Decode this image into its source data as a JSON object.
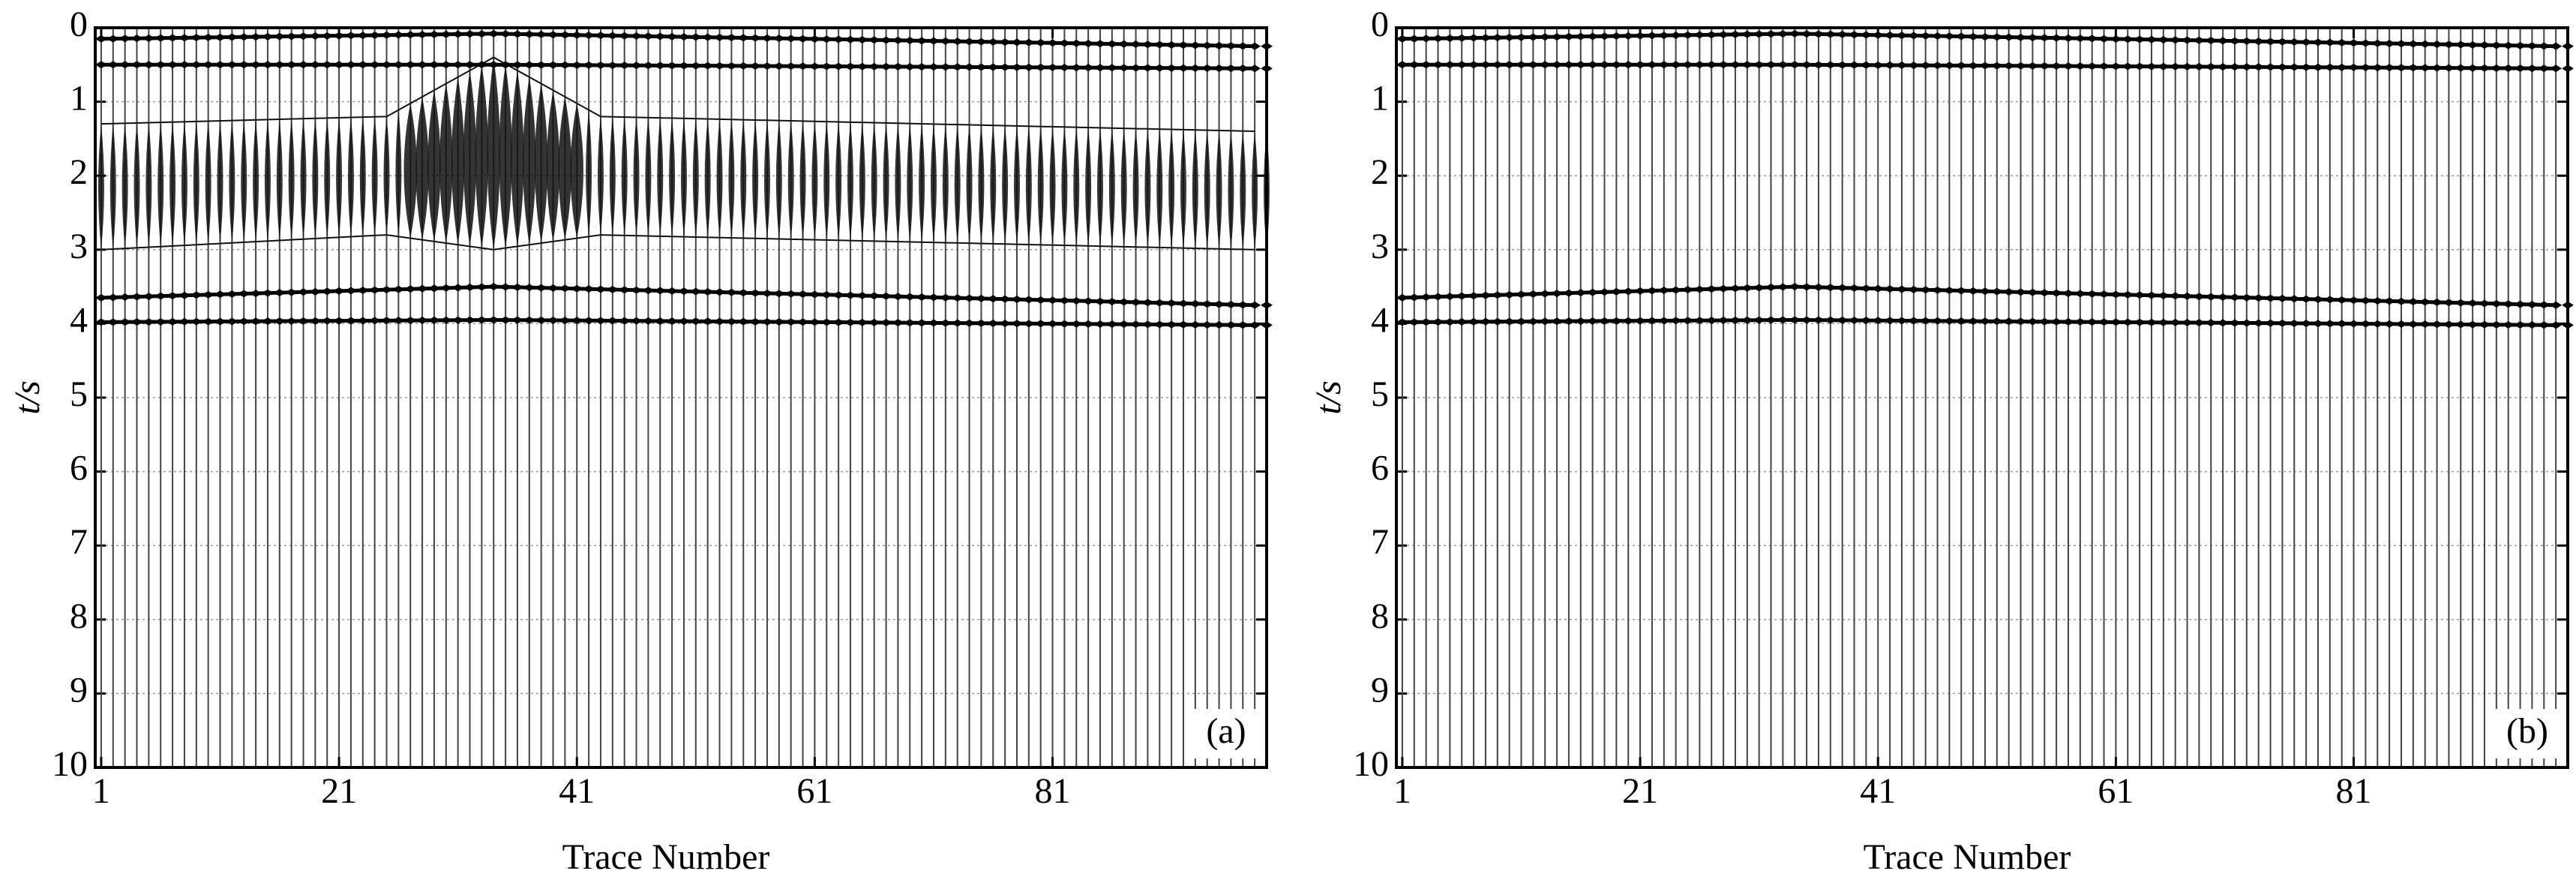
{
  "chart_data": [
    {
      "type": "seismic",
      "panel_label": "(a)",
      "x_label": "Trace Number",
      "y_label": "t/s",
      "xlim": [
        0.5,
        99
      ],
      "xticks": [
        1,
        21,
        41,
        61,
        81
      ],
      "ylim": [
        0,
        10
      ],
      "y_inverted": true,
      "yticks": [
        0,
        1,
        2,
        3,
        4,
        5,
        6,
        7,
        8,
        9,
        10
      ],
      "grid": true,
      "series": [
        {
          "color": "#000000",
          "x": [
            1,
            34,
            98
          ],
          "values": [
            0.15,
            0.08,
            0.25
          ]
        },
        {
          "color": "#000000",
          "x": [
            1,
            34,
            98
          ],
          "values": [
            0.5,
            0.5,
            0.55
          ]
        },
        {
          "color": "#000000",
          "x": [
            1,
            34,
            98
          ],
          "values": [
            3.65,
            3.5,
            3.75
          ]
        },
        {
          "color": "#000000",
          "x": [
            1,
            34,
            98
          ],
          "values": [
            3.98,
            3.95,
            4.02
          ]
        }
      ],
      "noise": {
        "x": [
          1,
          25,
          34,
          43,
          98
        ],
        "top": [
          1.3,
          1.2,
          0.4,
          1.2,
          1.4
        ],
        "bottom": [
          3.0,
          2.8,
          3.0,
          2.8,
          3.0
        ]
      }
    },
    {
      "type": "seismic",
      "panel_label": "(b)",
      "x_label": "Trace Number",
      "y_label": "t/s",
      "xlim": [
        0.5,
        99
      ],
      "xticks": [
        1,
        21,
        41,
        61,
        81
      ],
      "ylim": [
        0,
        10
      ],
      "y_inverted": true,
      "yticks": [
        0,
        1,
        2,
        3,
        4,
        5,
        6,
        7,
        8,
        9,
        10
      ],
      "grid": true,
      "series": [
        {
          "color": "#000000",
          "x": [
            1,
            34,
            98
          ],
          "values": [
            0.15,
            0.08,
            0.25
          ]
        },
        {
          "color": "#000000",
          "x": [
            1,
            34,
            98
          ],
          "values": [
            0.5,
            0.5,
            0.55
          ]
        },
        {
          "color": "#000000",
          "x": [
            1,
            34,
            98
          ],
          "values": [
            3.65,
            3.5,
            3.75
          ]
        },
        {
          "color": "#000000",
          "x": [
            1,
            34,
            98
          ],
          "values": [
            3.98,
            3.95,
            4.02
          ]
        }
      ]
    }
  ]
}
